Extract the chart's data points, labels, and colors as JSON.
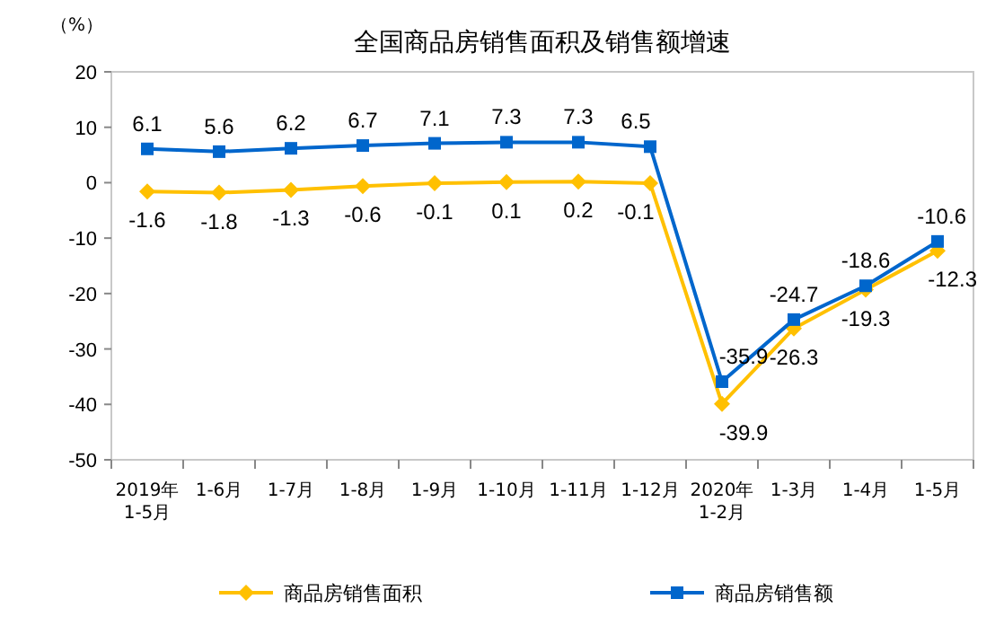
{
  "chart_data": {
    "type": "line",
    "title": "全国商品房销售面积及销售额增速",
    "ylabel": "（%）",
    "categories": [
      "2019年\n1-5月",
      "1-6月",
      "1-7月",
      "1-8月",
      "1-9月",
      "1-10月",
      "1-11月",
      "1-12月",
      "2020年\n1-2月",
      "1-3月",
      "1-4月",
      "1-5月"
    ],
    "series": [
      {
        "name": "商品房销售面积",
        "color": "#ffc000",
        "marker": "diamond",
        "values": [
          -1.6,
          -1.8,
          -1.3,
          -0.6,
          -0.1,
          0.1,
          0.2,
          -0.1,
          -39.9,
          -26.3,
          -19.3,
          -12.3
        ]
      },
      {
        "name": "商品房销售额",
        "color": "#0066cc",
        "marker": "square",
        "values": [
          6.1,
          5.6,
          6.2,
          6.7,
          7.1,
          7.3,
          7.3,
          6.5,
          -35.9,
          -24.7,
          -18.6,
          -10.6
        ]
      }
    ],
    "ylim": [
      -50,
      20
    ],
    "yticks": [
      -50,
      -40,
      -30,
      -20,
      -10,
      0,
      10,
      20
    ],
    "grid": false,
    "legend": "bottom",
    "data_labels": true
  }
}
